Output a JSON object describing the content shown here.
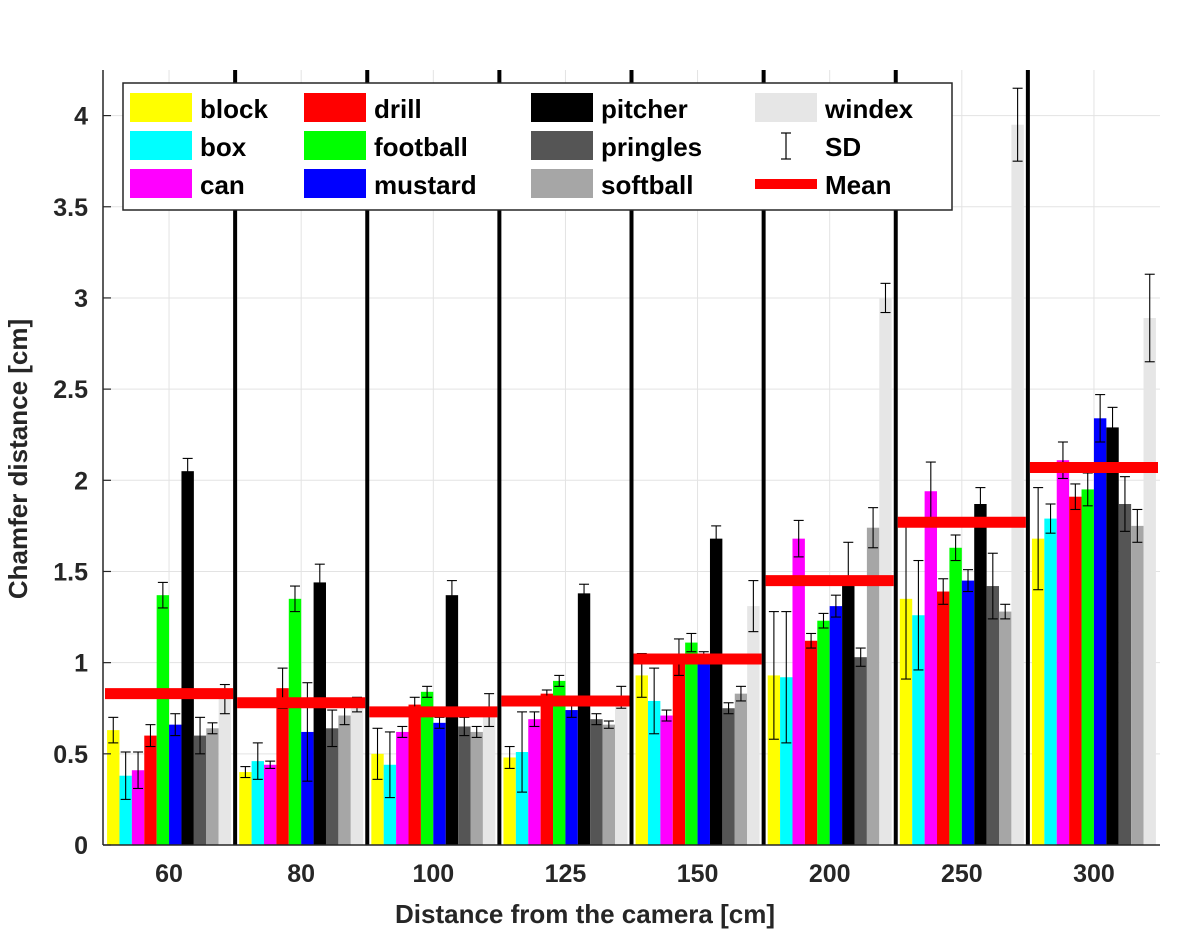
{
  "chart_data": {
    "type": "bar",
    "xlabel": "Distance from the camera [cm]",
    "ylabel": "Chamfer distance [cm]",
    "ylim": [
      0,
      4.25
    ],
    "yticks": [
      0,
      0.5,
      1,
      1.5,
      2,
      2.5,
      3,
      3.5,
      4
    ],
    "ytick_labels": [
      "0",
      "0.5",
      "1",
      "1.5",
      "2",
      "2.5",
      "3",
      "3.5",
      "4"
    ],
    "grid": true,
    "legend_position": "top",
    "categories": [
      "60",
      "80",
      "100",
      "125",
      "150",
      "200",
      "250",
      "300"
    ],
    "series": [
      {
        "name": "block",
        "color": "#ffff00",
        "values": [
          0.63,
          0.4,
          0.5,
          0.48,
          0.93,
          0.93,
          1.35,
          1.68
        ],
        "sd": [
          0.07,
          0.03,
          0.14,
          0.06,
          0.12,
          0.35,
          0.44,
          0.28
        ]
      },
      {
        "name": "box",
        "color": "#00ffff",
        "values": [
          0.38,
          0.46,
          0.44,
          0.51,
          0.79,
          0.92,
          1.26,
          1.79
        ],
        "sd": [
          0.13,
          0.1,
          0.18,
          0.22,
          0.18,
          0.36,
          0.3,
          0.08
        ]
      },
      {
        "name": "can",
        "color": "#ff00ff",
        "values": [
          0.41,
          0.44,
          0.62,
          0.69,
          0.71,
          1.68,
          1.94,
          2.11
        ],
        "sd": [
          0.1,
          0.02,
          0.03,
          0.04,
          0.03,
          0.1,
          0.16,
          0.1
        ]
      },
      {
        "name": "drill",
        "color": "#ff0000",
        "values": [
          0.6,
          0.86,
          0.77,
          0.83,
          1.03,
          1.12,
          1.39,
          1.91
        ],
        "sd": [
          0.06,
          0.11,
          0.04,
          0.02,
          0.1,
          0.04,
          0.07,
          0.07
        ]
      },
      {
        "name": "football",
        "color": "#00ff00",
        "values": [
          1.37,
          1.35,
          0.84,
          0.9,
          1.11,
          1.23,
          1.63,
          1.95
        ],
        "sd": [
          0.07,
          0.07,
          0.03,
          0.03,
          0.05,
          0.04,
          0.07,
          0.09
        ]
      },
      {
        "name": "mustard",
        "color": "#0000ff",
        "values": [
          0.66,
          0.62,
          0.67,
          0.74,
          1.03,
          1.31,
          1.45,
          2.34
        ],
        "sd": [
          0.06,
          0.27,
          0.03,
          0.04,
          0.03,
          0.06,
          0.06,
          0.13
        ]
      },
      {
        "name": "pitcher",
        "color": "#000000",
        "values": [
          2.05,
          1.44,
          1.37,
          1.38,
          1.68,
          1.43,
          1.87,
          2.29
        ],
        "sd": [
          0.07,
          0.1,
          0.08,
          0.05,
          0.07,
          0.23,
          0.09,
          0.11
        ]
      },
      {
        "name": "pringles",
        "color": "#555555",
        "values": [
          0.6,
          0.64,
          0.65,
          0.69,
          0.75,
          1.03,
          1.42,
          1.87
        ],
        "sd": [
          0.1,
          0.1,
          0.05,
          0.03,
          0.03,
          0.05,
          0.18,
          0.15
        ]
      },
      {
        "name": "softball",
        "color": "#a6a6a6",
        "values": [
          0.64,
          0.71,
          0.62,
          0.66,
          0.83,
          1.74,
          1.28,
          1.75
        ],
        "sd": [
          0.03,
          0.05,
          0.03,
          0.02,
          0.04,
          0.11,
          0.04,
          0.09
        ]
      },
      {
        "name": "windex",
        "color": "#e6e6e6",
        "values": [
          0.8,
          0.77,
          0.74,
          0.81,
          1.31,
          3.0,
          3.95,
          2.89
        ],
        "sd": [
          0.08,
          0.04,
          0.09,
          0.06,
          0.14,
          0.08,
          0.2,
          0.24
        ]
      }
    ],
    "mean": {
      "name": "Mean",
      "color": "#ff0000",
      "values": [
        0.83,
        0.78,
        0.73,
        0.79,
        1.02,
        1.45,
        1.77,
        2.07
      ]
    },
    "sd_label": "SD"
  },
  "legend_rows": 3
}
